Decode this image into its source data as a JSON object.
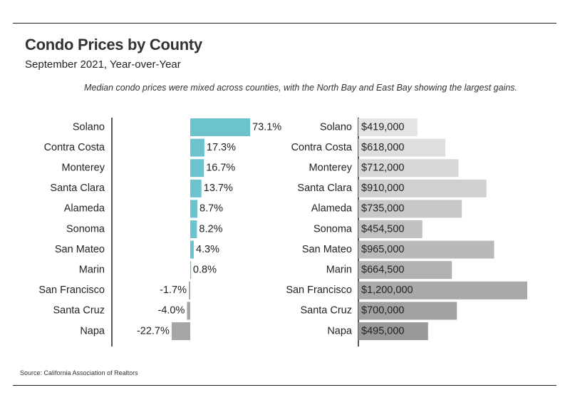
{
  "header": {
    "title": "Condo Prices by County",
    "subtitle": "September 2021, Year-over-Year",
    "note": "Median condo prices were mixed across counties, with the North Bay and East Bay showing the largest gains."
  },
  "footer": {
    "source": "Source:  California Association of Realtors"
  },
  "chart_data": [
    {
      "type": "bar",
      "orientation": "horizontal",
      "title": "",
      "categories": [
        "Solano",
        "Contra Costa",
        "Monterey",
        "Santa Clara",
        "Alameda",
        "Sonoma",
        "San Mateo",
        "Marin",
        "San Francisco",
        "Santa Cruz",
        "Napa"
      ],
      "values": [
        73.1,
        17.3,
        16.7,
        13.7,
        8.7,
        8.2,
        4.3,
        0.8,
        -1.7,
        -4.0,
        -22.7
      ],
      "labels": [
        "73.1%",
        "17.3%",
        "16.7%",
        "13.7%",
        "8.7%",
        "8.2%",
        "4.3%",
        "0.8%",
        "-1.7%",
        "-4.0%",
        "-22.7%"
      ],
      "unit": "%",
      "xlim": [
        -40,
        80
      ],
      "grid": false,
      "colors": {
        "positive": "#6cc3cd",
        "negative": "#a6a6a6"
      }
    },
    {
      "type": "bar",
      "orientation": "horizontal",
      "title": "",
      "categories": [
        "Solano",
        "Contra Costa",
        "Monterey",
        "Santa Clara",
        "Alameda",
        "Sonoma",
        "San Mateo",
        "Marin",
        "San Francisco",
        "Santa Cruz",
        "Napa"
      ],
      "values": [
        419000,
        618000,
        712000,
        910000,
        735000,
        454500,
        965000,
        664500,
        1200000,
        700000,
        495000
      ],
      "labels": [
        "$419,000",
        "$618,000",
        "$712,000",
        "$910,000",
        "$735,000",
        "$454,500",
        "$965,000",
        "$664,500",
        "$1,200,000",
        "$700,000",
        "$495,000"
      ],
      "unit": "$",
      "xlim": [
        0,
        1200000
      ],
      "grid": false,
      "colors": [
        "#e4e4e4",
        "#dedede",
        "#d8d8d8",
        "#d0d0d0",
        "#c8c8c8",
        "#c0c0c0",
        "#b9b9b9",
        "#b1b1b1",
        "#a9a9a9",
        "#a1a1a1",
        "#999999"
      ]
    }
  ]
}
